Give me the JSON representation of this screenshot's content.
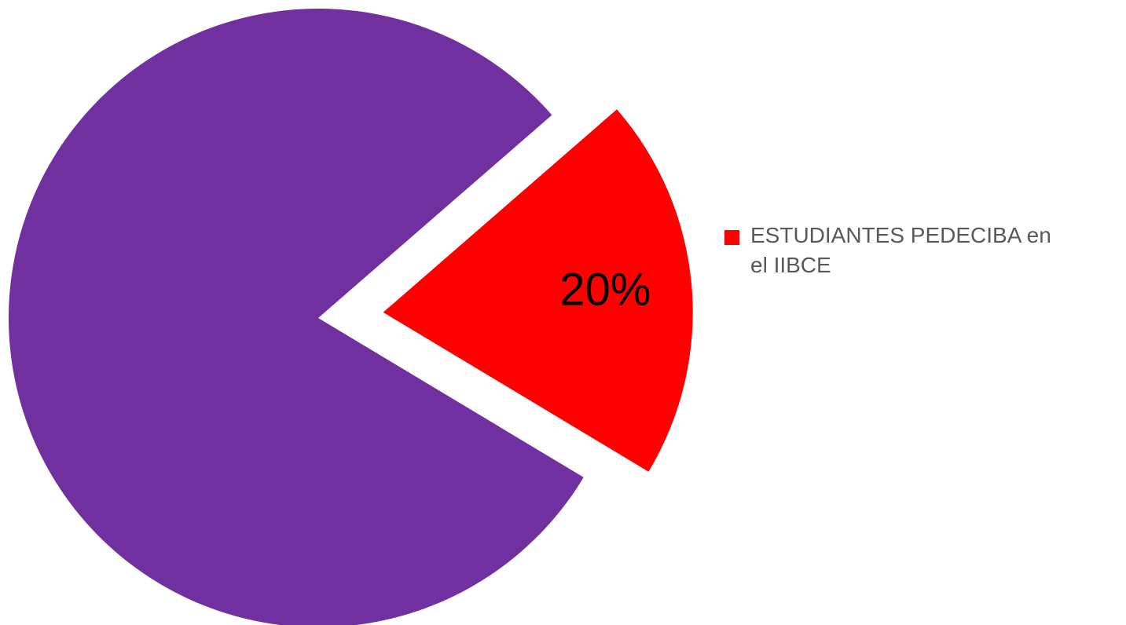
{
  "chart_data": {
    "type": "pie",
    "categories": [
      null,
      "ESTUDIANTES PEDECIBA en el IIBCE"
    ],
    "values": [
      80,
      20
    ],
    "value_labels": [
      null,
      "20%"
    ],
    "colors": [
      "#7030a0",
      "#ff0000"
    ],
    "exploded": [
      false,
      true
    ]
  }
}
